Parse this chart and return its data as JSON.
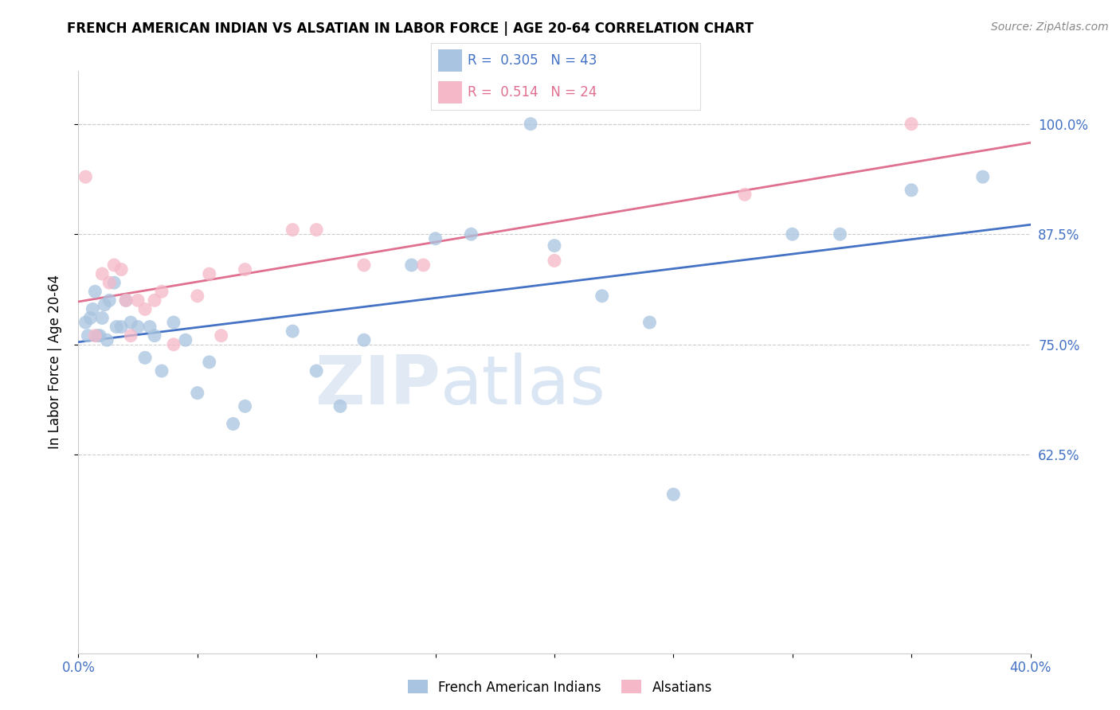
{
  "title": "FRENCH AMERICAN INDIAN VS ALSATIAN IN LABOR FORCE | AGE 20-64 CORRELATION CHART",
  "source": "Source: ZipAtlas.com",
  "ylabel": "In Labor Force | Age 20-64",
  "blue_color": "#a8c4e0",
  "pink_color": "#f5b8c8",
  "blue_line_color": "#4472c4",
  "pink_line_color": "#e07090",
  "axis_label_color": "#4472c4",
  "grid_color": "#cccccc",
  "watermark_color": "#d0e4f4",
  "blue_legend": "R =  0.305   N = 43",
  "pink_legend": "R =  0.514   N = 24",
  "blue_points_x": [
    0.3,
    0.4,
    0.5,
    0.6,
    0.7,
    0.8,
    0.9,
    1.0,
    1.1,
    1.2,
    1.3,
    1.5,
    1.6,
    1.8,
    2.0,
    2.2,
    2.5,
    2.8,
    3.0,
    3.2,
    3.5,
    4.0,
    4.5,
    5.0,
    5.5,
    6.5,
    7.0,
    9.0,
    10.0,
    11.0,
    12.0,
    14.0,
    15.0,
    16.5,
    19.0,
    20.0,
    22.0,
    24.0,
    25.0,
    30.0,
    32.0,
    35.0,
    38.0
  ],
  "blue_points_y": [
    0.775,
    0.76,
    0.78,
    0.79,
    0.81,
    0.76,
    0.76,
    0.78,
    0.795,
    0.755,
    0.8,
    0.82,
    0.77,
    0.77,
    0.8,
    0.775,
    0.77,
    0.735,
    0.77,
    0.76,
    0.72,
    0.775,
    0.755,
    0.695,
    0.73,
    0.66,
    0.68,
    0.765,
    0.72,
    0.68,
    0.755,
    0.84,
    0.87,
    0.875,
    1.0,
    0.862,
    0.805,
    0.775,
    0.58,
    0.875,
    0.875,
    0.925,
    0.94
  ],
  "pink_points_x": [
    0.3,
    0.7,
    1.0,
    1.3,
    1.5,
    1.8,
    2.0,
    2.2,
    2.5,
    2.8,
    3.2,
    3.5,
    4.0,
    5.0,
    5.5,
    6.0,
    7.0,
    9.0,
    10.0,
    12.0,
    14.5,
    20.0,
    28.0,
    35.0
  ],
  "pink_points_y": [
    0.94,
    0.76,
    0.83,
    0.82,
    0.84,
    0.835,
    0.8,
    0.76,
    0.8,
    0.79,
    0.8,
    0.81,
    0.75,
    0.805,
    0.83,
    0.76,
    0.835,
    0.88,
    0.88,
    0.84,
    0.84,
    0.845,
    0.92,
    1.0
  ],
  "xlim": [
    0,
    40
  ],
  "ylim": [
    0.4,
    1.06
  ],
  "ytick_positions": [
    0.625,
    0.75,
    0.875,
    1.0
  ],
  "ytick_labels": [
    "62.5%",
    "75.0%",
    "87.5%",
    "100.0%"
  ],
  "xtick_positions": [
    0,
    5,
    10,
    15,
    20,
    25,
    30,
    35,
    40
  ],
  "xtick_labels": [
    "0.0%",
    "",
    "",
    "",
    "",
    "",
    "",
    "",
    "40.0%"
  ],
  "figsize": [
    14.06,
    8.92
  ],
  "dpi": 100
}
